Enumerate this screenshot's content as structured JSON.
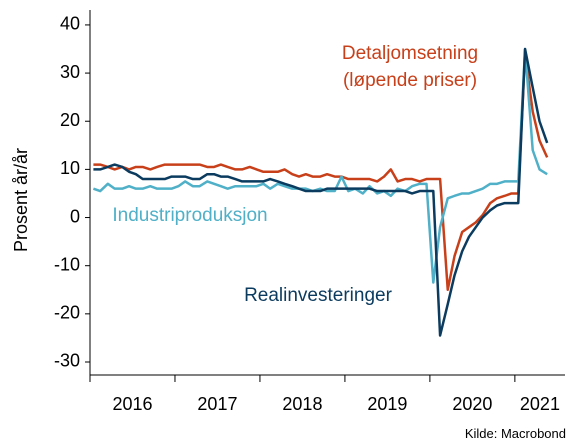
{
  "chart_data": {
    "type": "line",
    "y_label": "Prosent år/år",
    "source": "Kilde: Macrobond",
    "xlim": [
      2016,
      2021.59
    ],
    "xticks": [
      2016,
      2017,
      2018,
      2019,
      2020,
      2021
    ],
    "ylim": [
      -32.7,
      43.1
    ],
    "yticks": [
      -30,
      -20,
      -10,
      0,
      10,
      20,
      30,
      40
    ],
    "x": [
      2016.04,
      2016.12,
      2016.21,
      2016.29,
      2016.38,
      2016.46,
      2016.54,
      2016.62,
      2016.71,
      2016.79,
      2016.88,
      2016.96,
      2017.04,
      2017.12,
      2017.21,
      2017.29,
      2017.38,
      2017.46,
      2017.54,
      2017.62,
      2017.71,
      2017.79,
      2017.88,
      2017.96,
      2018.04,
      2018.12,
      2018.21,
      2018.29,
      2018.38,
      2018.46,
      2018.54,
      2018.62,
      2018.71,
      2018.79,
      2018.88,
      2018.96,
      2019.04,
      2019.12,
      2019.21,
      2019.29,
      2019.38,
      2019.46,
      2019.54,
      2019.62,
      2019.71,
      2019.79,
      2019.88,
      2019.96,
      2020.04,
      2020.12,
      2020.21,
      2020.29,
      2020.38,
      2020.46,
      2020.54,
      2020.62,
      2020.71,
      2020.79,
      2020.88,
      2020.96,
      2021.04,
      2021.12,
      2021.21,
      2021.29,
      2021.38
    ],
    "series": [
      {
        "name": "Detaljomsetning\n(løpende priser)",
        "color": "#c8401a",
        "values": [
          11,
          11,
          10.5,
          10,
          10.5,
          10,
          10.5,
          10.5,
          10,
          10.5,
          11,
          11,
          11,
          11,
          11,
          11,
          10.5,
          10.5,
          11,
          10.5,
          10,
          10,
          10.5,
          10,
          9.5,
          9.5,
          9.5,
          10,
          9,
          8.5,
          9,
          8.5,
          8.5,
          9,
          8.5,
          8.5,
          8,
          8,
          8,
          8,
          7.5,
          8.5,
          10,
          7.5,
          8,
          8,
          7.5,
          8,
          8,
          8,
          -15,
          -8,
          -3,
          -2,
          -1,
          0.5,
          3,
          4,
          4.5,
          5,
          5,
          34,
          22,
          16,
          12.5
        ]
      },
      {
        "name": "Industriproduksjon",
        "color": "#4fb0c8",
        "values": [
          6,
          5.5,
          7,
          6,
          6,
          6.5,
          6,
          6,
          6.5,
          6,
          6,
          6,
          6.5,
          7.5,
          6.5,
          6.5,
          7.5,
          7,
          6.5,
          6,
          6.5,
          6.5,
          6.5,
          6.5,
          7,
          6,
          7,
          6.5,
          6,
          6,
          6,
          5.5,
          6,
          5.5,
          5.5,
          8.5,
          5.5,
          6,
          5,
          6.5,
          5,
          5.5,
          4.5,
          6,
          5.5,
          6.5,
          7,
          7,
          -13.5,
          -2,
          4,
          4.5,
          5,
          5,
          5.5,
          6,
          7,
          7,
          7.5,
          7.5,
          7.5,
          35,
          14,
          10,
          9
        ]
      },
      {
        "name": "Realinvesteringer",
        "color": "#0b3b5e",
        "values": [
          10,
          10,
          10.5,
          11,
          10.5,
          9.5,
          9,
          8,
          8,
          8,
          8,
          8.5,
          8.5,
          8.5,
          8,
          8,
          9,
          9,
          8.5,
          8.5,
          8,
          7.5,
          7.5,
          7.5,
          7.5,
          8,
          7.5,
          7,
          6.5,
          6,
          5.5,
          5.5,
          5.5,
          6,
          6,
          6,
          6,
          6,
          6,
          6,
          5.5,
          5.5,
          5.5,
          5.5,
          5.5,
          5,
          5.5,
          5.5,
          5.5,
          -24.5,
          -18,
          -12,
          -7,
          -4,
          -2,
          0,
          1.5,
          2.5,
          3,
          3,
          3,
          35,
          27,
          20,
          15.5
        ]
      }
    ]
  }
}
